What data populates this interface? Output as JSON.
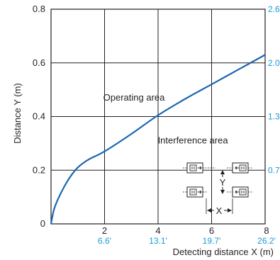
{
  "chart_data": {
    "type": "line",
    "title": "",
    "xlabel": "Detecting distance X (m)",
    "ylabel": "Distance Y (m)",
    "xlim": [
      0,
      8
    ],
    "ylim": [
      0,
      0.8
    ],
    "grid": true,
    "x_ticks": [
      {
        "value": 2,
        "label": "2",
        "feet": "6.6'"
      },
      {
        "value": 4,
        "label": "4",
        "feet": "13.1'"
      },
      {
        "value": 6,
        "label": "6",
        "feet": "19.7'"
      },
      {
        "value": 8,
        "label": "8",
        "feet": "26.2'"
      }
    ],
    "y_ticks": [
      {
        "value": 0,
        "label": "0"
      },
      {
        "value": 0.2,
        "label": "0.2"
      },
      {
        "value": 0.4,
        "label": "0.4"
      },
      {
        "value": 0.6,
        "label": "0.6"
      },
      {
        "value": 0.8,
        "label": "0.8"
      }
    ],
    "y_ticks_right": [
      {
        "value": 0.2,
        "label": "0.7'"
      },
      {
        "value": 0.4,
        "label": "1.3'"
      },
      {
        "value": 0.6,
        "label": "2.0'"
      },
      {
        "value": 0.8,
        "label": "2.6'"
      }
    ],
    "series": [
      {
        "x": [
          0,
          0.1,
          0.25,
          0.5,
          0.75,
          1.0,
          1.25,
          1.5,
          2.0,
          3.0,
          4.0,
          5.0,
          6.0,
          7.0,
          8.0
        ],
        "y": [
          0,
          0.05,
          0.09,
          0.14,
          0.18,
          0.21,
          0.23,
          0.245,
          0.27,
          0.335,
          0.405,
          0.465,
          0.52,
          0.575,
          0.63
        ]
      }
    ],
    "annotations": [
      {
        "text": "Operating area",
        "x": 3.1,
        "y": 0.46
      },
      {
        "text": "Interference area",
        "x": 5.3,
        "y": 0.3
      }
    ],
    "inset": {
      "y_label": "Y",
      "x_label": "X"
    }
  },
  "colors": {
    "curve": "#1b66b1",
    "axis": "#231f20",
    "feet": "#1a9ad6"
  }
}
